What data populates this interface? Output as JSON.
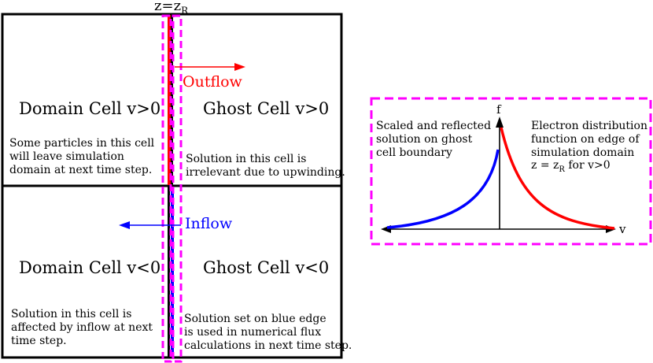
{
  "boundary": {
    "label": "z=z",
    "label_sub": "R"
  },
  "cells": {
    "domain_pos": {
      "title": "Domain Cell v>0",
      "text": "Some particles in this cell\nwill leave simulation\ndomain at next time step."
    },
    "ghost_pos": {
      "title": "Ghost Cell v>0",
      "text": "Solution in this cell is\nirrelevant due to upwinding."
    },
    "domain_neg": {
      "title": "Domain Cell v<0",
      "text": "Solution in this cell is\naffected by inflow at next\ntime step."
    },
    "ghost_neg": {
      "title": "Ghost Cell v<0",
      "text": "Solution set on blue edge\nis used in numerical flux\ncalculations in next time step."
    }
  },
  "flows": {
    "outflow": "Outflow",
    "inflow": "Inflow"
  },
  "plot": {
    "y_axis_label": "f",
    "x_axis_label": "v",
    "left_text": "Scaled and reflected\nsolution on ghost\ncell boundary",
    "right_text_main": "Electron distribution\nfunction on edge of\nsimulation domain",
    "right_text_eq": "z = z",
    "right_text_sub": "R",
    "right_text_tail": " for v>0"
  },
  "colors": {
    "outflow": "#ff0000",
    "inflow": "#0000ff",
    "highlight": "#ff00ff",
    "border": "#000000"
  }
}
